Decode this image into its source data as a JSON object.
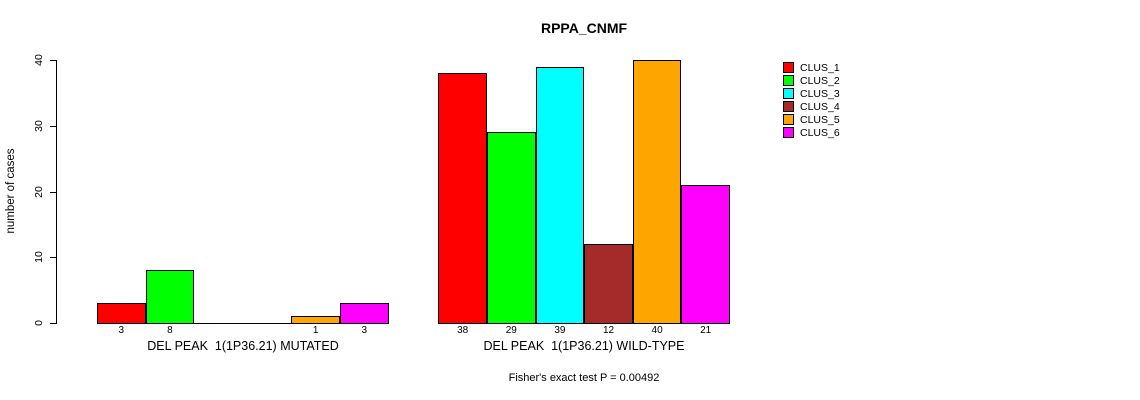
{
  "chart_data": {
    "type": "bar",
    "title": "RPPA_CNMF",
    "ylabel": "number of cases",
    "ylim": [
      0,
      40
    ],
    "yticks": [
      0,
      10,
      20,
      30,
      40
    ],
    "grid": false,
    "legend_position": "right",
    "groups": [
      "DEL PEAK  1(1P36.21) MUTATED",
      "DEL PEAK  1(1P36.21) WILD-TYPE"
    ],
    "series": [
      {
        "name": "CLUS_1",
        "color": "#ff0000",
        "values": [
          3,
          38
        ]
      },
      {
        "name": "CLUS_2",
        "color": "#00ff00",
        "values": [
          8,
          29
        ]
      },
      {
        "name": "CLUS_3",
        "color": "#00ffff",
        "values": [
          0,
          39
        ]
      },
      {
        "name": "CLUS_4",
        "color": "#a52a2a",
        "values": [
          0,
          12
        ]
      },
      {
        "name": "CLUS_5",
        "color": "#ffa500",
        "values": [
          1,
          40
        ]
      },
      {
        "name": "CLUS_6",
        "color": "#ff00ff",
        "values": [
          3,
          21
        ]
      }
    ],
    "annotation": "Fisher's exact test P = 0.00492"
  }
}
